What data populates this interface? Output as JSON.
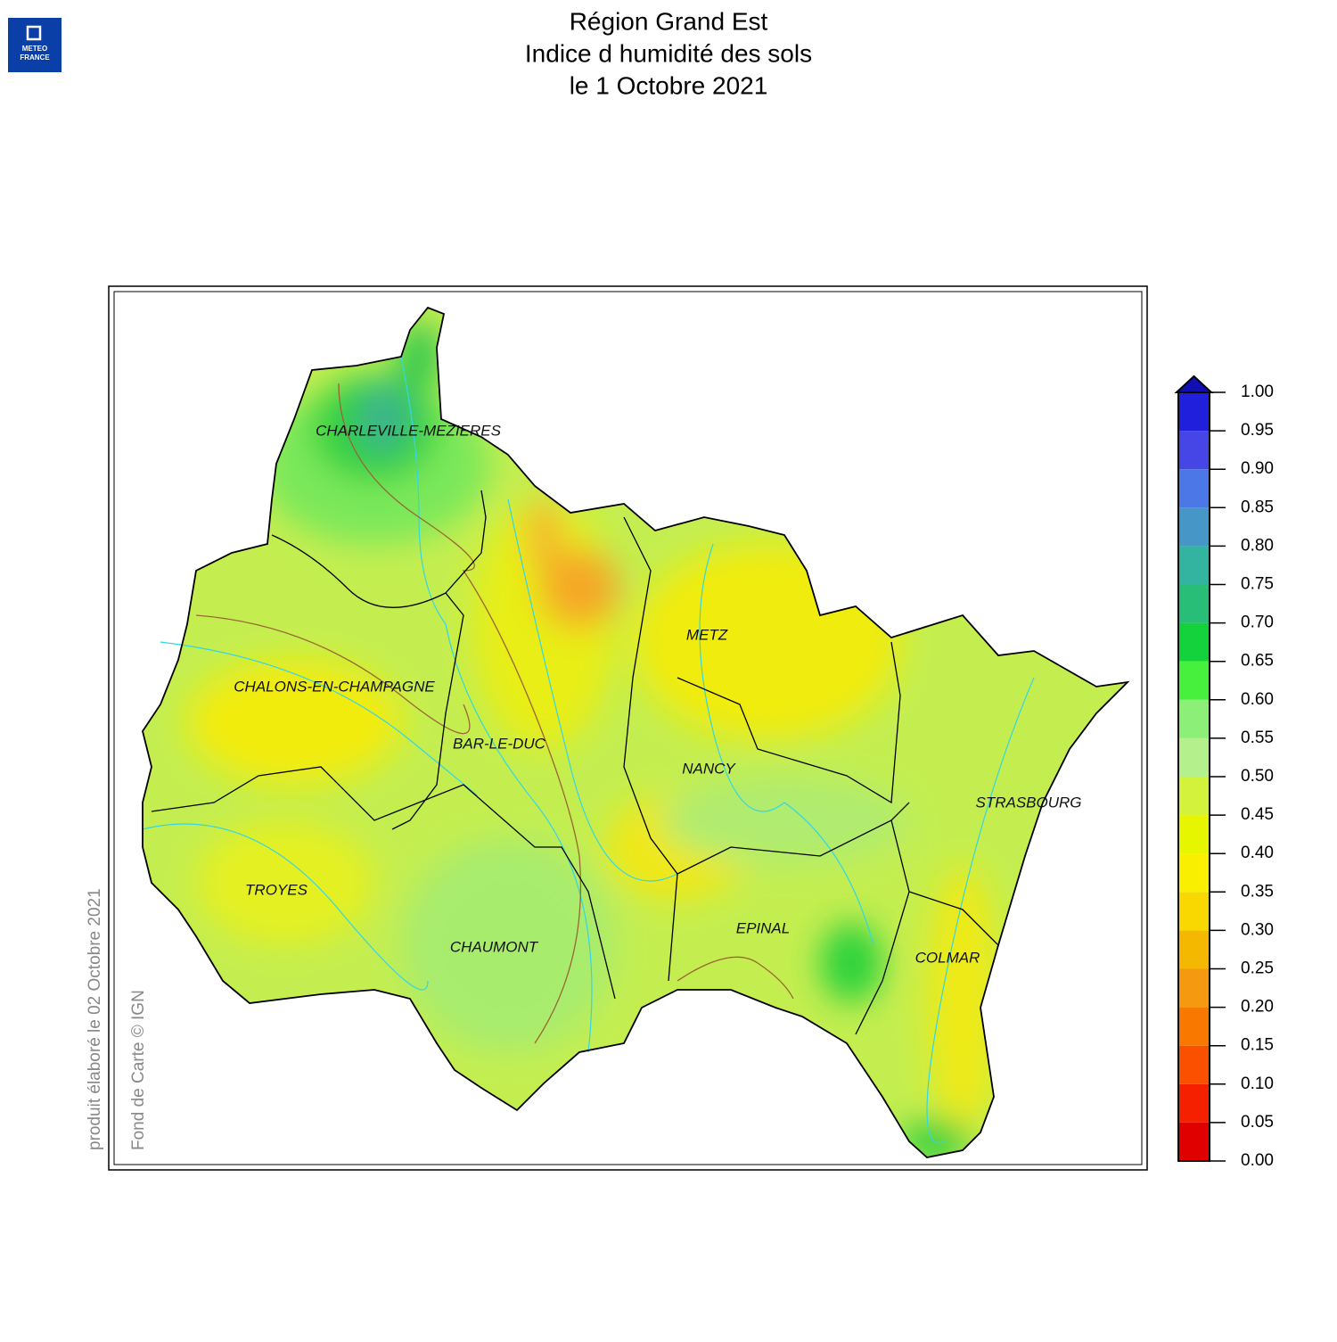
{
  "header": {
    "title": [
      "Région Grand Est",
      "Indice d humidité des sols",
      "le 1 Octobre 2021"
    ],
    "logo": [
      "METEO",
      "FRANCE"
    ]
  },
  "map": {
    "cities": [
      "CHARLEVILLE-MEZIERES",
      "METZ",
      "CHALONS-EN-CHAMPAGNE",
      "BAR-LE-DUC",
      "NANCY",
      "STRASBOURG",
      "TROYES",
      "CHAUMONT",
      "EPINAL",
      "COLMAR"
    ]
  },
  "legend": {
    "ticks": [
      {
        "value": 0,
        "label": "0.00"
      },
      {
        "value": 0.05,
        "label": "0.05"
      },
      {
        "value": 0.1,
        "label": "0.10"
      },
      {
        "value": 0.15,
        "label": "0.15"
      },
      {
        "value": 0.2,
        "label": "0.20"
      },
      {
        "value": 0.25,
        "label": "0.25"
      },
      {
        "value": 0.3,
        "label": "0.30"
      },
      {
        "value": 0.35,
        "label": "0.35"
      },
      {
        "value": 0.4,
        "label": "0.40"
      },
      {
        "value": 0.45,
        "label": "0.45"
      },
      {
        "value": 0.5,
        "label": "0.50"
      },
      {
        "value": 0.55,
        "label": "0.55"
      },
      {
        "value": 0.6,
        "label": "0.60"
      },
      {
        "value": 0.65,
        "label": "0.65"
      },
      {
        "value": 0.7,
        "label": "0.70"
      },
      {
        "value": 0.75,
        "label": "0.75"
      },
      {
        "value": 0.8,
        "label": "0.80"
      },
      {
        "value": 0.85,
        "label": "0.85"
      },
      {
        "value": 0.9,
        "label": "0.90"
      },
      {
        "value": 0.95,
        "label": "0.95"
      },
      {
        "value": 1,
        "label": "1.00"
      }
    ],
    "colors": [
      "#e00000",
      "#f52000",
      "#fa5000",
      "#f87800",
      "#f59a10",
      "#f5b800",
      "#f8d800",
      "#f8f000",
      "#e6f500",
      "#d2f23c",
      "#b4f08c",
      "#8cf078",
      "#46f03c",
      "#14d23c",
      "#28be78",
      "#32b4a0",
      "#4696c8",
      "#4b78e6",
      "#4646e6",
      "#2020dc"
    ]
  },
  "credits": {
    "produced": "produit élaboré le 02 Octobre 2021",
    "basemap": "Fond de Carte © IGN"
  }
}
